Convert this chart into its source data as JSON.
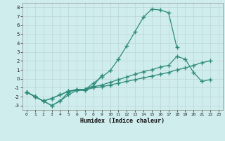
{
  "xlabel": "Humidex (Indice chaleur)",
  "x_values": [
    0,
    1,
    2,
    3,
    4,
    5,
    6,
    7,
    8,
    9,
    10,
    11,
    12,
    13,
    14,
    15,
    16,
    17,
    18,
    19,
    20,
    21,
    22,
    23
  ],
  "line1_y": [
    -1.5,
    -2.0,
    -2.5,
    -3.0,
    -2.5,
    -1.5,
    -1.2,
    -1.2,
    -0.8,
    0.4,
    null,
    null,
    null,
    null,
    null,
    null,
    null,
    null,
    null,
    null,
    null,
    null,
    null,
    null
  ],
  "line2_y": [
    -1.5,
    -2.0,
    -2.5,
    -3.0,
    -2.5,
    -1.8,
    -1.3,
    -1.2,
    -0.5,
    0.2,
    0.9,
    2.2,
    3.7,
    5.3,
    6.9,
    7.8,
    7.7,
    7.4,
    3.5,
    null,
    null,
    null,
    null,
    null
  ],
  "line3_y": [
    -1.5,
    -2.0,
    -2.5,
    -2.2,
    -1.8,
    -1.4,
    -1.2,
    -1.2,
    -0.9,
    -0.7,
    -0.4,
    -0.1,
    0.2,
    0.5,
    0.8,
    1.0,
    1.3,
    1.5,
    2.5,
    2.2,
    0.7,
    -0.3,
    -0.1,
    null
  ],
  "line4_y": [
    -1.5,
    -2.0,
    -2.5,
    -2.2,
    -1.8,
    -1.4,
    -1.3,
    -1.3,
    -1.0,
    -0.9,
    -0.7,
    -0.5,
    -0.3,
    -0.1,
    0.1,
    0.3,
    0.5,
    0.7,
    1.0,
    1.2,
    1.5,
    1.8,
    2.0,
    null
  ],
  "line_color": "#2e8b7a",
  "bg_color": "#d0eded",
  "grid_color": "#c0d8d8",
  "ylim": [
    -3.5,
    8.5
  ],
  "xlim": [
    -0.5,
    23.5
  ],
  "yticks": [
    -3,
    -2,
    -1,
    0,
    1,
    2,
    3,
    4,
    5,
    6,
    7,
    8
  ],
  "xticks": [
    0,
    1,
    2,
    3,
    4,
    5,
    6,
    7,
    8,
    9,
    10,
    11,
    12,
    13,
    14,
    15,
    16,
    17,
    18,
    19,
    20,
    21,
    22,
    23
  ],
  "marker": "+",
  "markersize": 4,
  "linewidth": 0.9
}
